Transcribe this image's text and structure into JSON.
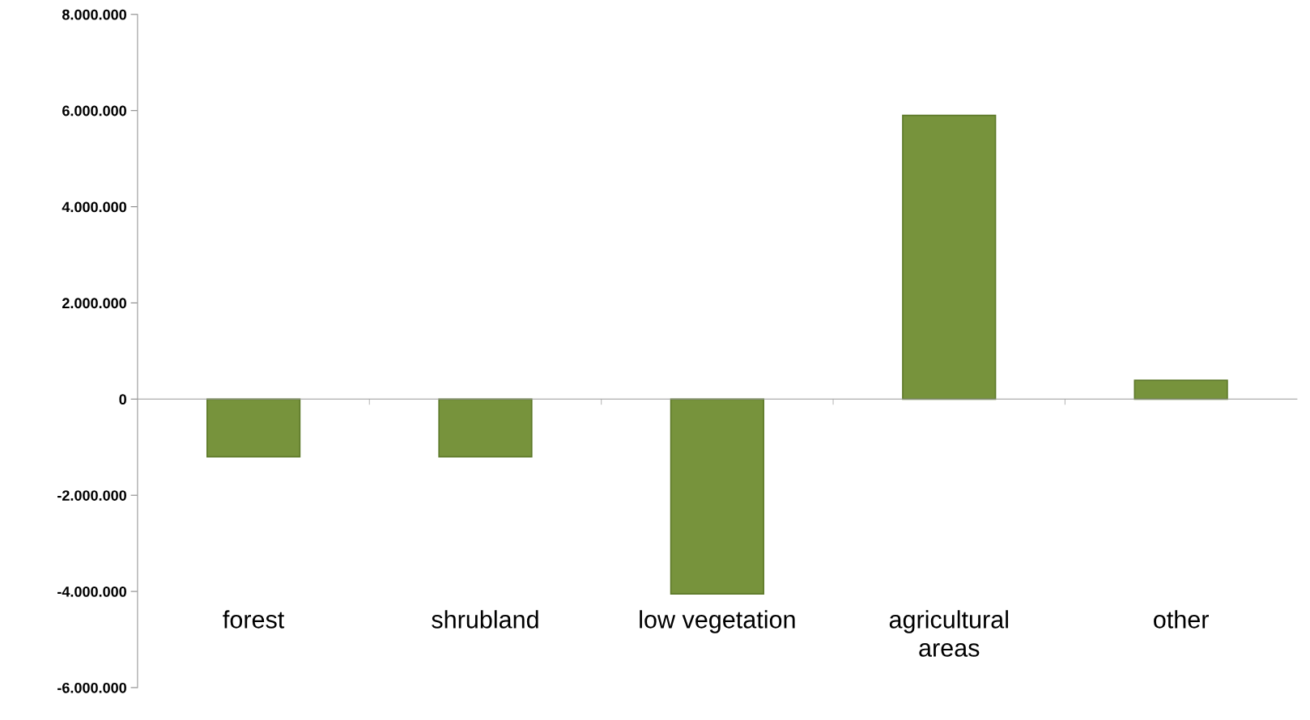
{
  "chart_data": {
    "type": "bar",
    "categories": [
      "forest",
      "shrubland",
      "low vegetation",
      "agricultural\nareas",
      "other"
    ],
    "values": [
      -1200000,
      -1200000,
      -4050000,
      5900000,
      390000
    ],
    "color": "#77933c",
    "ylim": [
      -6000000,
      8000000
    ],
    "yticks": [
      {
        "value": -6000000,
        "label": "-6.000.000"
      },
      {
        "value": -4000000,
        "label": "-4.000.000"
      },
      {
        "value": -2000000,
        "label": "-2.000.000"
      },
      {
        "value": 0,
        "label": "0"
      },
      {
        "value": 2000000,
        "label": "2.000.000"
      },
      {
        "value": 4000000,
        "label": "4.000.000"
      },
      {
        "value": 6000000,
        "label": "6.000.000"
      },
      {
        "value": 8000000,
        "label": "8.000.000"
      }
    ],
    "legend": false
  }
}
